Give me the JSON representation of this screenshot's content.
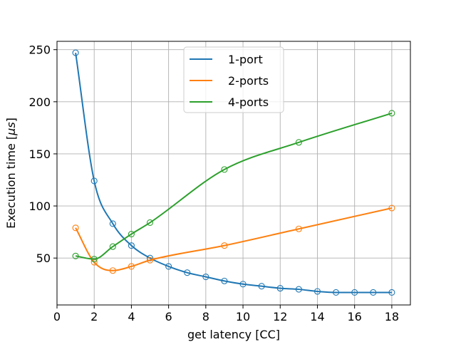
{
  "chart_data": {
    "type": "line",
    "xlabel": "get latency [CC]",
    "ylabel": "Execution time [",
    "ylabel_unit": "μs",
    "ylabel_close": "]",
    "xlim": [
      0,
      19
    ],
    "ylim": [
      5,
      258
    ],
    "x_ticks": [
      0,
      2,
      4,
      6,
      8,
      10,
      12,
      14,
      16,
      18
    ],
    "x_tick_labels": [
      "0",
      "2",
      "4",
      "6",
      "8",
      "10",
      "12",
      "14",
      "16",
      "18"
    ],
    "y_ticks": [
      50,
      100,
      150,
      200,
      250
    ],
    "y_tick_labels": [
      "50",
      "100",
      "150",
      "200",
      "250"
    ],
    "grid": true,
    "legend_position": "top-center",
    "series": [
      {
        "name": "1-port",
        "color": "#1f77b4",
        "x": [
          1,
          2,
          3,
          4,
          5,
          6,
          7,
          8,
          9,
          10,
          11,
          12,
          13,
          14,
          15,
          16,
          17,
          18
        ],
        "y": [
          247,
          124,
          83,
          62,
          50,
          42,
          36,
          32,
          28,
          25,
          23,
          21,
          20,
          18,
          17,
          17,
          17,
          17
        ]
      },
      {
        "name": "2-ports",
        "color": "#ff7f0e",
        "x": [
          1,
          2,
          3,
          4,
          5,
          9,
          13,
          18
        ],
        "y": [
          79,
          46,
          38,
          42,
          48,
          62,
          78,
          98
        ]
      },
      {
        "name": "4-ports",
        "color": "#2ca02c",
        "x": [
          1,
          2,
          3,
          4,
          5,
          9,
          13,
          18
        ],
        "y": [
          52,
          49,
          61,
          73,
          84,
          135,
          161,
          189
        ]
      }
    ]
  }
}
